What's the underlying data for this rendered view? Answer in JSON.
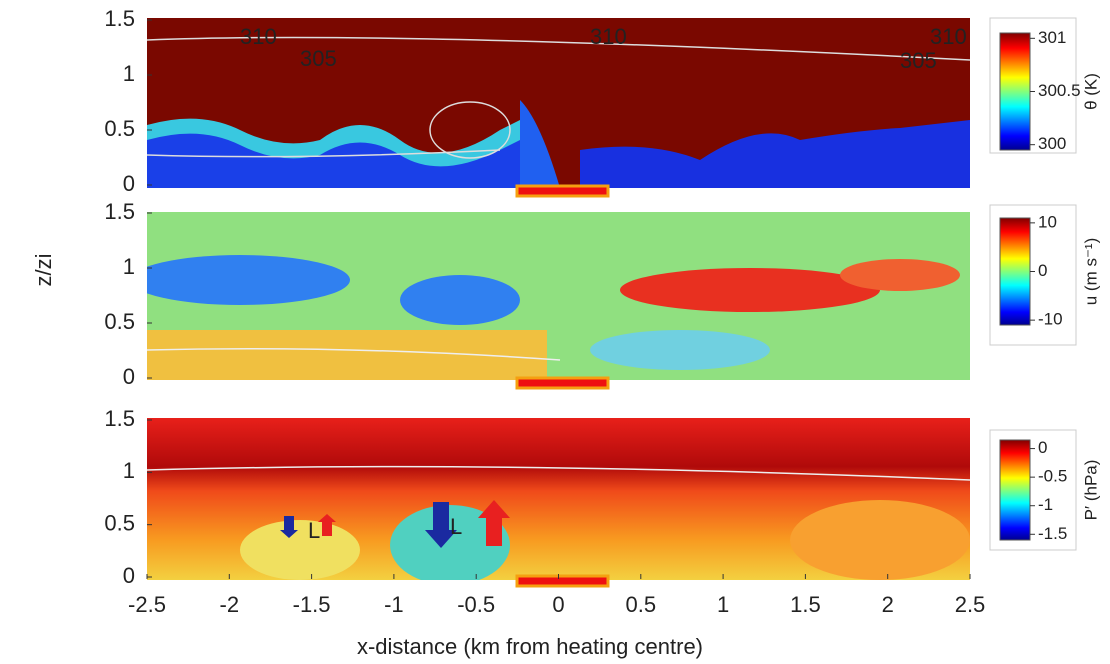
{
  "chart_data": [
    {
      "type": "heatmap",
      "xlim": [
        -2.5,
        2.5
      ],
      "ylim": [
        0,
        1.5
      ],
      "yticks": [
        0,
        0.5,
        1,
        1.5
      ],
      "annotations": [
        "310",
        "305",
        "310",
        "310",
        "305"
      ],
      "colorbar": {
        "label": "θ (K)",
        "lim": [
          299.95,
          301.05
        ],
        "ticks": [
          300,
          300.5,
          301
        ]
      }
    },
    {
      "type": "heatmap",
      "xlim": [
        -2.5,
        2.5
      ],
      "ylim": [
        0,
        1.5
      ],
      "yticks": [
        0,
        0.5,
        1,
        1.5
      ],
      "ylabel": "z/zi",
      "colorbar": {
        "label": "u (m s⁻¹)",
        "lim": [
          -11,
          11
        ],
        "ticks": [
          -10,
          0,
          10
        ]
      }
    },
    {
      "type": "heatmap",
      "xlim": [
        -2.5,
        2.5
      ],
      "ylim": [
        0,
        1.5
      ],
      "yticks": [
        0,
        0.5,
        1,
        1.5
      ],
      "xticks": [
        -2.5,
        -2,
        -1.5,
        -1,
        -0.5,
        0,
        0.5,
        1,
        1.5,
        2,
        2.5
      ],
      "xlabel": "x-distance (km from heating centre)",
      "annotations": [
        "L",
        "L"
      ],
      "colorbar": {
        "label": "P′ (hPa)",
        "lim": [
          -1.6,
          0.15
        ],
        "ticks": [
          -1.5,
          -1,
          -0.5,
          0
        ]
      }
    }
  ]
}
